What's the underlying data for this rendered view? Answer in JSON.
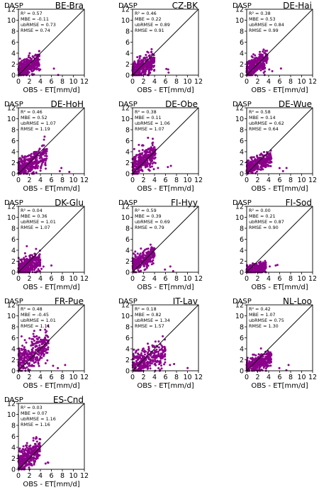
{
  "figure": {
    "axis_label_x": "OBS - ET[mm/d]",
    "axis_label_y": "DASP"
  },
  "chart_data": [
    {
      "type": "scatter",
      "title": "BE-Bra",
      "xlabel": "OBS - ET[mm/d]",
      "ylabel": "DASP",
      "xlim": [
        0,
        12
      ],
      "ylim": [
        0,
        12
      ],
      "xticks": [
        "0",
        "2",
        "4",
        "6",
        "8",
        "10",
        "12"
      ],
      "yticks": [
        "0",
        "2",
        "4",
        "6",
        "8",
        "10",
        "12"
      ],
      "one_to_one_line": true,
      "point_color": "#8b008b",
      "stats": [
        "R² = 0.57",
        "MBE = -0.11",
        "ubRMSE = 0.73",
        "RMSE = 0.74"
      ],
      "cloud": {
        "x_range": [
          0,
          3.8
        ],
        "y_peak": 3.2,
        "y_spread": 0.75
      }
    },
    {
      "type": "scatter",
      "title": "CZ-BK",
      "xlabel": "OBS - ET[mm/d]",
      "ylabel": "DASP",
      "xlim": [
        0,
        12
      ],
      "ylim": [
        0,
        12
      ],
      "xticks": [
        "0",
        "2",
        "4",
        "6",
        "8",
        "10",
        "12"
      ],
      "yticks": [
        "0",
        "2",
        "4",
        "6",
        "8",
        "10",
        "12"
      ],
      "one_to_one_line": true,
      "point_color": "#8b008b",
      "stats": [
        "R² = 0.46",
        "MBE = 0.22",
        "ubRMSE = 0.89",
        "RMSE = 0.91"
      ],
      "cloud": {
        "x_range": [
          0,
          4.0
        ],
        "y_peak": 3.0,
        "y_spread": 0.9
      }
    },
    {
      "type": "scatter",
      "title": "DE-Hai",
      "xlabel": "OBS - ET[mm/d]",
      "ylabel": "DASP",
      "xlim": [
        0,
        12
      ],
      "ylim": [
        0,
        12
      ],
      "xticks": [
        "0",
        "2",
        "4",
        "6",
        "8",
        "10",
        "12"
      ],
      "yticks": [
        "0",
        "2",
        "4",
        "6",
        "8",
        "10",
        "12"
      ],
      "one_to_one_line": true,
      "point_color": "#8b008b",
      "stats": [
        "R² = 0.38",
        "MBE = 0.53",
        "ubRMSE = 0.84",
        "RMSE = 0.99"
      ],
      "cloud": {
        "x_range": [
          0,
          3.8
        ],
        "y_peak": 3.6,
        "y_spread": 0.85
      }
    },
    {
      "type": "scatter",
      "title": "DE-HoH",
      "xlabel": "OBS - ET[mm/d]",
      "ylabel": "DASP",
      "xlim": [
        0,
        12
      ],
      "ylim": [
        0,
        12
      ],
      "xticks": [
        "0",
        "2",
        "4",
        "6",
        "8",
        "10",
        "12"
      ],
      "yticks": [
        "0",
        "2",
        "4",
        "6",
        "8",
        "10",
        "12"
      ],
      "one_to_one_line": true,
      "point_color": "#8b008b",
      "stats": [
        "R² = 0.46",
        "MBE = 0.52",
        "ubRMSE = 1.07",
        "RMSE = 1.19"
      ],
      "cloud": {
        "x_range": [
          0,
          5.2
        ],
        "y_peak": 3.8,
        "y_spread": 1.0
      }
    },
    {
      "type": "scatter",
      "title": "DE-Obe",
      "xlabel": "OBS - ET[mm/d]",
      "ylabel": "DASP",
      "xlim": [
        0,
        12
      ],
      "ylim": [
        0,
        12
      ],
      "xticks": [
        "0",
        "2",
        "4",
        "6",
        "8",
        "10",
        "12"
      ],
      "yticks": [
        "0",
        "2",
        "4",
        "6",
        "8",
        "10",
        "12"
      ],
      "one_to_one_line": true,
      "point_color": "#8b008b",
      "stats": [
        "R² = 0.38",
        "MBE = 0.11",
        "ubRMSE = 1.06",
        "RMSE = 1.07"
      ],
      "cloud": {
        "x_range": [
          0,
          4.2
        ],
        "y_peak": 4.5,
        "y_spread": 1.1
      }
    },
    {
      "type": "scatter",
      "title": "DE-Wue",
      "xlabel": "OBS - ET[mm/d]",
      "ylabel": "DASP",
      "xlim": [
        0,
        12
      ],
      "ylim": [
        0,
        12
      ],
      "xticks": [
        "0",
        "2",
        "4",
        "6",
        "8",
        "10",
        "12"
      ],
      "yticks": [
        "0",
        "2",
        "4",
        "6",
        "8",
        "10",
        "12"
      ],
      "one_to_one_line": true,
      "point_color": "#8b008b",
      "stats": [
        "R² = 0.58",
        "MBE = 0.14",
        "ubRMSE = 0.62",
        "RMSE = 0.64"
      ],
      "cloud": {
        "x_range": [
          0,
          4.5
        ],
        "y_peak": 3.4,
        "y_spread": 0.7
      }
    },
    {
      "type": "scatter",
      "title": "DK-Glu",
      "xlabel": "OBS - ET[mm/d]",
      "ylabel": "DASP",
      "xlim": [
        0,
        12
      ],
      "ylim": [
        0,
        12
      ],
      "xticks": [
        "0",
        "2",
        "4",
        "6",
        "8",
        "10",
        "12"
      ],
      "yticks": [
        "0",
        "2",
        "4",
        "6",
        "8",
        "10",
        "12"
      ],
      "one_to_one_line": true,
      "point_color": "#8b008b",
      "stats": [
        "R² = 0.04",
        "MBE = 0.36",
        "ubRMSE = 1.01",
        "RMSE = 1.07"
      ],
      "cloud": {
        "x_range": [
          0,
          4.0
        ],
        "y_peak": 2.4,
        "y_spread": 0.9
      }
    },
    {
      "type": "scatter",
      "title": "FI-Hyy",
      "xlabel": "OBS - ET[mm/d]",
      "ylabel": "DASP",
      "xlim": [
        0,
        12
      ],
      "ylim": [
        0,
        12
      ],
      "xticks": [
        "0",
        "2",
        "4",
        "6",
        "8",
        "10",
        "12"
      ],
      "yticks": [
        "0",
        "2",
        "4",
        "6",
        "8",
        "10",
        "12"
      ],
      "one_to_one_line": true,
      "point_color": "#8b008b",
      "stats": [
        "R² = 0.59",
        "MBE = 0.39",
        "ubRMSE = 0.69",
        "RMSE = 0.79"
      ],
      "cloud": {
        "x_range": [
          0,
          4.0
        ],
        "y_peak": 4.0,
        "y_spread": 0.75
      }
    },
    {
      "type": "scatter",
      "title": "FI-Sod",
      "xlabel": "OBS - ET[mm/d]",
      "ylabel": "DASP",
      "xlim": [
        0,
        12
      ],
      "ylim": [
        0,
        12
      ],
      "xticks": [
        "0",
        "2",
        "4",
        "6",
        "8",
        "10",
        "12"
      ],
      "yticks": [
        "0",
        "2",
        "4",
        "6",
        "8",
        "10",
        "12"
      ],
      "one_to_one_line": true,
      "point_color": "#8b008b",
      "stats": [
        "R² = 0.00",
        "MBE = 0.21",
        "ubRMSE = 0.87",
        "RMSE = 0.90"
      ],
      "cloud": {
        "x_range": [
          0,
          3.5
        ],
        "y_peak": 1.2,
        "y_spread": 0.45
      }
    },
    {
      "type": "scatter",
      "title": "FR-Pue",
      "xlabel": "OBS - ET[mm/d]",
      "ylabel": "DASP",
      "xlim": [
        0,
        12
      ],
      "ylim": [
        0,
        12
      ],
      "xticks": [
        "0",
        "2",
        "4",
        "6",
        "8",
        "10",
        "12"
      ],
      "yticks": [
        "0",
        "2",
        "4",
        "6",
        "8",
        "10",
        "12"
      ],
      "one_to_one_line": true,
      "point_color": "#8b008b",
      "stats": [
        "R² = 0.48",
        "MBE = -0.45",
        "ubRMSE = 1.01",
        "RMSE = 1.11"
      ],
      "cloud": {
        "x_range": [
          0,
          5.5
        ],
        "y_peak": 6.0,
        "y_spread": 1.3
      }
    },
    {
      "type": "scatter",
      "title": "IT-Lav",
      "xlabel": "OBS - ET[mm/d]",
      "ylabel": "DASP",
      "xlim": [
        0,
        12
      ],
      "ylim": [
        0,
        12
      ],
      "xticks": [
        "0",
        "2",
        "4",
        "6",
        "8",
        "10",
        "12"
      ],
      "yticks": [
        "0",
        "2",
        "4",
        "6",
        "8",
        "10",
        "12"
      ],
      "one_to_one_line": true,
      "point_color": "#8b008b",
      "stats": [
        "R² = 0.18",
        "MBE = 0.82",
        "ubRMSE = 1.34",
        "RMSE = 1.57"
      ],
      "cloud": {
        "x_range": [
          0,
          6.0
        ],
        "y_peak": 3.8,
        "y_spread": 1.1
      }
    },
    {
      "type": "scatter",
      "title": "NL-Loo",
      "xlabel": "OBS - ET[mm/d]",
      "ylabel": "DASP",
      "xlim": [
        0,
        12
      ],
      "ylim": [
        0,
        12
      ],
      "xticks": [
        "0",
        "2",
        "4",
        "6",
        "8",
        "10",
        "12"
      ],
      "yticks": [
        "0",
        "2",
        "4",
        "6",
        "8",
        "10",
        "12"
      ],
      "one_to_one_line": true,
      "point_color": "#8b008b",
      "stats": [
        "R² = 0.42",
        "MBE = 1.07",
        "ubRMSE = 0.75",
        "RMSE = 1.30"
      ],
      "cloud": {
        "x_range": [
          0,
          4.5
        ],
        "y_peak": 2.6,
        "y_spread": 0.7
      }
    },
    {
      "type": "scatter",
      "title": "ES-Cnd",
      "xlabel": "OBS - ET[mm/d]",
      "ylabel": "DASP",
      "xlim": [
        0,
        12
      ],
      "ylim": [
        0,
        12
      ],
      "xticks": [
        "0",
        "2",
        "4",
        "6",
        "8",
        "10",
        "12"
      ],
      "yticks": [
        "0",
        "2",
        "4",
        "6",
        "8",
        "10",
        "12"
      ],
      "one_to_one_line": true,
      "point_color": "#8b008b",
      "stats": [
        "R² = 0.03",
        "MBE = 0.07",
        "ubRMSE = 1.16",
        "RMSE = 1.16"
      ],
      "cloud": {
        "x_range": [
          0,
          4.0
        ],
        "y_peak": 4.5,
        "y_spread": 1.0
      }
    }
  ]
}
